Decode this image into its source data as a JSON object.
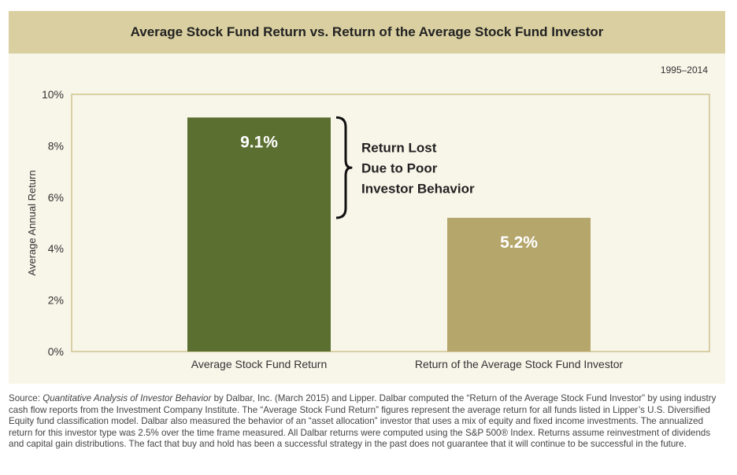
{
  "title": "Average Stock Fund Return vs. Return of the Average Stock Fund Investor",
  "date_range": "1995–2014",
  "annotation": {
    "lines": [
      "Return Lost",
      "Due to Poor",
      "Investor Behavior"
    ]
  },
  "colors": {
    "header_bg": "#d9cfa0",
    "panel_bg": "#f8f5e9",
    "plot_border": "#cfc390",
    "bar_1": "#5b6f31",
    "bar_2": "#b5a66c"
  },
  "chart_data": {
    "type": "bar",
    "title": "Average Stock Fund Return vs. Return of the Average Stock Fund Investor",
    "categories": [
      "Average Stock Fund Return",
      "Return of the Average Stock Fund Investor"
    ],
    "values": [
      9.1,
      5.2
    ],
    "data_labels": [
      "9.1%",
      "5.2%"
    ],
    "xlabel": "",
    "ylabel": "Average Annual Return",
    "ylim": [
      0,
      10
    ],
    "yticks": [
      0,
      2,
      4,
      6,
      8,
      10
    ],
    "ytick_labels": [
      "0%",
      "2%",
      "4%",
      "6%",
      "8%",
      "10%"
    ],
    "grid": false,
    "legend": "none"
  },
  "footnote": {
    "prefix": "Source: ",
    "source_title": "Quantitative Analysis of Investor Behavior",
    "body": " by Dalbar, Inc. (March 2015) and Lipper. Dalbar computed the “Return of the Average Stock Fund Investor” by using industry cash flow reports from the Investment Company Institute. The “Average Stock Fund Return” figures represent the average return for all funds listed in Lipper’s U.S. Diversified Equity fund classification model. Dalbar also measured the behavior of an “asset allocation” investor that uses a mix of equity and fixed income investments. The annualized return for this investor type was 2.5% over the time frame measured. All Dalbar returns were computed using the S&P 500® Index. Returns assume reinvestment of dividends and capital gain distributions. The fact that buy and hold has been a successful strategy in the past does not guarantee that it will continue to be successful in the future."
  }
}
